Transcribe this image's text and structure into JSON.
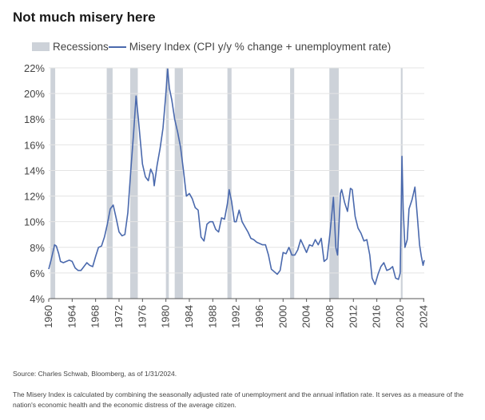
{
  "title": "Not much misery here",
  "legend": {
    "recessions": "Recessions",
    "series": "Misery Index (CPI y/y % change + unemployment rate)"
  },
  "source": "Source: Charles Schwab, Bloomberg, as of 1/31/2024.",
  "note": "The Misery Index is calculated by combining the seasonally adjusted rate of unemployment and the annual inflation rate. It serves as a measure of the nation's economic health and the economic distress of the average citizen.",
  "colors": {
    "line": "#4a69ad",
    "recession": "#cdd2d9",
    "grid": "#e4e4e4",
    "axis": "#555555"
  },
  "chart_data": {
    "type": "line",
    "title": "Not much misery here",
    "xlabel": "",
    "ylabel": "",
    "xlim": [
      1960,
      2024.1
    ],
    "ylim": [
      4,
      22
    ],
    "grid": "horizontal",
    "legend_position": "top-left",
    "x_ticks": [
      1960,
      1964,
      1968,
      1972,
      1976,
      1980,
      1984,
      1988,
      1992,
      1996,
      2000,
      2004,
      2008,
      2012,
      2016,
      2020,
      2024
    ],
    "y_ticks": [
      4,
      6,
      8,
      10,
      12,
      14,
      16,
      18,
      20,
      22
    ],
    "y_tick_labels": [
      "4%",
      "6%",
      "8%",
      "10%",
      "12%",
      "14%",
      "16%",
      "18%",
      "20%",
      "22%"
    ],
    "recessions": [
      [
        1960.3,
        1961.1
      ],
      [
        1969.9,
        1970.9
      ],
      [
        1973.9,
        1975.2
      ],
      [
        1980.0,
        1980.5
      ],
      [
        1981.5,
        1982.9
      ],
      [
        1990.5,
        1991.2
      ],
      [
        2001.2,
        2001.9
      ],
      [
        2007.9,
        2009.5
      ],
      [
        2020.1,
        2020.4
      ]
    ],
    "series": [
      {
        "name": "Misery Index (CPI y/y % change + unemployment rate)",
        "points": [
          [
            1960.0,
            6.3
          ],
          [
            1960.4,
            7.0
          ],
          [
            1960.8,
            7.8
          ],
          [
            1961.0,
            8.2
          ],
          [
            1961.3,
            8.1
          ],
          [
            1961.7,
            7.5
          ],
          [
            1962.0,
            6.9
          ],
          [
            1962.5,
            6.8
          ],
          [
            1963.0,
            6.9
          ],
          [
            1963.5,
            7.0
          ],
          [
            1964.0,
            6.9
          ],
          [
            1964.5,
            6.4
          ],
          [
            1965.0,
            6.2
          ],
          [
            1965.5,
            6.2
          ],
          [
            1966.0,
            6.5
          ],
          [
            1966.5,
            6.8
          ],
          [
            1967.0,
            6.6
          ],
          [
            1967.5,
            6.5
          ],
          [
            1968.0,
            7.3
          ],
          [
            1968.5,
            8.0
          ],
          [
            1969.0,
            8.1
          ],
          [
            1969.5,
            8.8
          ],
          [
            1970.0,
            9.8
          ],
          [
            1970.5,
            11.0
          ],
          [
            1971.0,
            11.3
          ],
          [
            1971.5,
            10.3
          ],
          [
            1972.0,
            9.2
          ],
          [
            1972.5,
            8.9
          ],
          [
            1973.0,
            9.0
          ],
          [
            1973.5,
            10.7
          ],
          [
            1974.0,
            14.0
          ],
          [
            1974.5,
            17.0
          ],
          [
            1974.9,
            19.8
          ],
          [
            1975.3,
            18.0
          ],
          [
            1975.7,
            16.0
          ],
          [
            1976.0,
            14.5
          ],
          [
            1976.5,
            13.5
          ],
          [
            1977.0,
            13.2
          ],
          [
            1977.4,
            14.1
          ],
          [
            1977.8,
            13.7
          ],
          [
            1978.0,
            12.8
          ],
          [
            1978.5,
            14.4
          ],
          [
            1979.0,
            15.7
          ],
          [
            1979.5,
            17.3
          ],
          [
            1980.0,
            20.0
          ],
          [
            1980.3,
            21.9
          ],
          [
            1980.6,
            20.4
          ],
          [
            1981.0,
            19.5
          ],
          [
            1981.5,
            18.0
          ],
          [
            1982.0,
            17.0
          ],
          [
            1982.5,
            15.8
          ],
          [
            1983.0,
            14.0
          ],
          [
            1983.5,
            12.0
          ],
          [
            1984.0,
            12.2
          ],
          [
            1984.5,
            11.8
          ],
          [
            1985.0,
            11.1
          ],
          [
            1985.5,
            10.9
          ],
          [
            1986.0,
            8.8
          ],
          [
            1986.5,
            8.5
          ],
          [
            1987.0,
            9.8
          ],
          [
            1987.5,
            10.0
          ],
          [
            1988.0,
            10.0
          ],
          [
            1988.5,
            9.4
          ],
          [
            1989.0,
            9.2
          ],
          [
            1989.5,
            10.3
          ],
          [
            1990.0,
            10.2
          ],
          [
            1990.5,
            11.4
          ],
          [
            1990.8,
            12.5
          ],
          [
            1991.2,
            11.6
          ],
          [
            1991.7,
            10.0
          ],
          [
            1992.0,
            10.0
          ],
          [
            1992.5,
            10.9
          ],
          [
            1993.0,
            10.0
          ],
          [
            1993.5,
            9.6
          ],
          [
            1994.0,
            9.2
          ],
          [
            1994.5,
            8.7
          ],
          [
            1995.0,
            8.6
          ],
          [
            1995.5,
            8.4
          ],
          [
            1996.0,
            8.3
          ],
          [
            1996.5,
            8.2
          ],
          [
            1997.0,
            8.2
          ],
          [
            1997.5,
            7.4
          ],
          [
            1998.0,
            6.3
          ],
          [
            1998.5,
            6.1
          ],
          [
            1999.0,
            5.9
          ],
          [
            1999.5,
            6.2
          ],
          [
            2000.0,
            7.6
          ],
          [
            2000.5,
            7.5
          ],
          [
            2001.0,
            8.0
          ],
          [
            2001.5,
            7.4
          ],
          [
            2002.0,
            7.4
          ],
          [
            2002.5,
            7.8
          ],
          [
            2003.0,
            8.6
          ],
          [
            2003.5,
            8.1
          ],
          [
            2004.0,
            7.6
          ],
          [
            2004.5,
            8.2
          ],
          [
            2005.0,
            8.1
          ],
          [
            2005.5,
            8.6
          ],
          [
            2006.0,
            8.2
          ],
          [
            2006.5,
            8.7
          ],
          [
            2007.0,
            6.9
          ],
          [
            2007.5,
            7.1
          ],
          [
            2008.0,
            9.1
          ],
          [
            2008.6,
            11.9
          ],
          [
            2009.0,
            8.0
          ],
          [
            2009.3,
            7.4
          ],
          [
            2009.8,
            12.2
          ],
          [
            2010.0,
            12.5
          ],
          [
            2010.5,
            11.5
          ],
          [
            2011.0,
            10.8
          ],
          [
            2011.5,
            12.6
          ],
          [
            2011.8,
            12.5
          ],
          [
            2012.3,
            10.4
          ],
          [
            2012.8,
            9.5
          ],
          [
            2013.3,
            9.1
          ],
          [
            2013.8,
            8.5
          ],
          [
            2014.3,
            8.6
          ],
          [
            2014.8,
            7.4
          ],
          [
            2015.2,
            5.6
          ],
          [
            2015.7,
            5.1
          ],
          [
            2016.2,
            5.9
          ],
          [
            2016.7,
            6.5
          ],
          [
            2017.2,
            6.8
          ],
          [
            2017.7,
            6.2
          ],
          [
            2018.2,
            6.3
          ],
          [
            2018.7,
            6.5
          ],
          [
            2019.2,
            5.6
          ],
          [
            2019.7,
            5.5
          ],
          [
            2020.0,
            6.0
          ],
          [
            2020.3,
            15.1
          ],
          [
            2020.5,
            11.0
          ],
          [
            2020.8,
            8.0
          ],
          [
            2021.2,
            8.6
          ],
          [
            2021.5,
            11.0
          ],
          [
            2022.0,
            11.7
          ],
          [
            2022.5,
            12.7
          ],
          [
            2022.9,
            10.5
          ],
          [
            2023.3,
            8.2
          ],
          [
            2023.6,
            7.3
          ],
          [
            2023.9,
            6.6
          ],
          [
            2024.1,
            7.0
          ]
        ]
      }
    ]
  }
}
